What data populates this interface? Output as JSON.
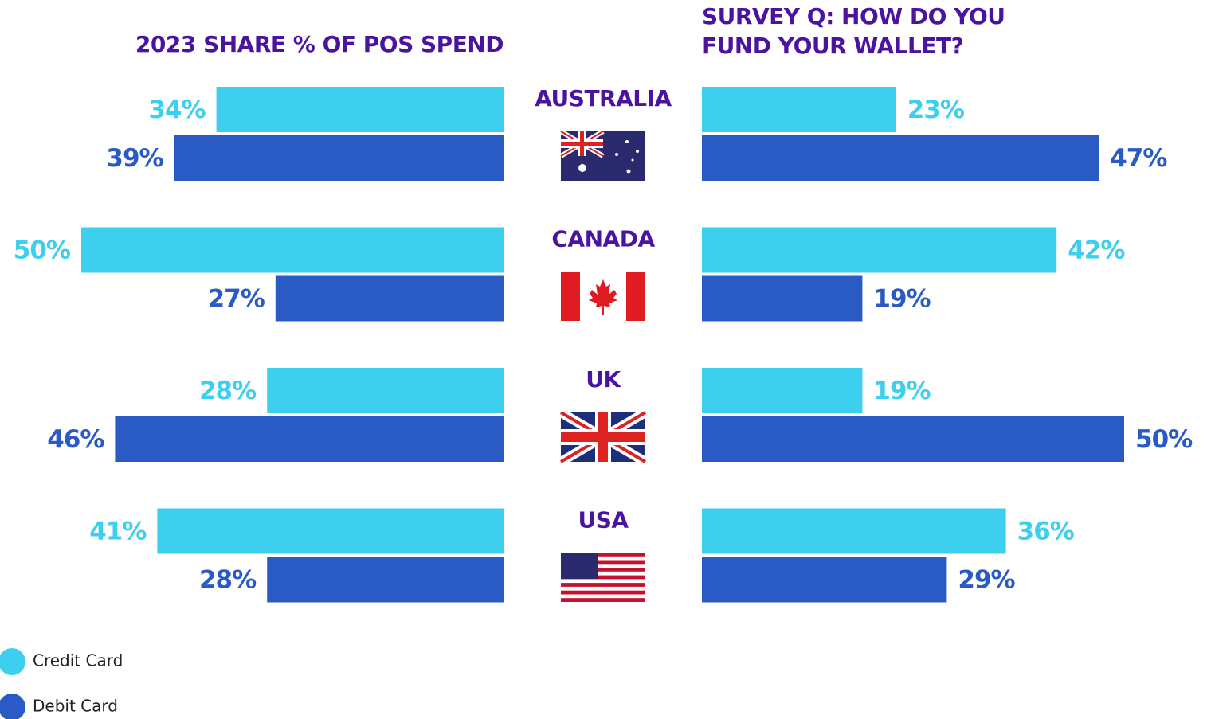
{
  "chart_data": [
    {
      "type": "bar",
      "title": "2023 SHARE % OF POS SPEND",
      "categories": [
        "AUSTRALIA",
        "CANADA",
        "UK",
        "USA"
      ],
      "series": [
        {
          "name": "Credit Card",
          "color": "#3ccfee",
          "values": [
            34,
            50,
            28,
            41
          ],
          "value_labels": [
            "34%",
            "50%",
            "28%",
            "41%"
          ]
        },
        {
          "name": "Debit Card",
          "color": "#2a5bc5",
          "values": [
            39,
            27,
            46,
            28
          ],
          "value_labels": [
            "39%",
            "27%",
            "46%",
            "28%"
          ]
        }
      ]
    },
    {
      "type": "bar",
      "title": "SURVEY Q: HOW DO YOU FUND YOUR WALLET?",
      "series": [
        {
          "color": "#3ccfee",
          "values": [
            23,
            42,
            19,
            36
          ],
          "value_labels": [
            "23%",
            "42%",
            "19%",
            "36%"
          ]
        },
        {
          "color": "#2a5bc5",
          "values": [
            47,
            19,
            50,
            29
          ],
          "value_labels": [
            "47%",
            "19%",
            "50%",
            "29%"
          ]
        }
      ]
    }
  ]
}
